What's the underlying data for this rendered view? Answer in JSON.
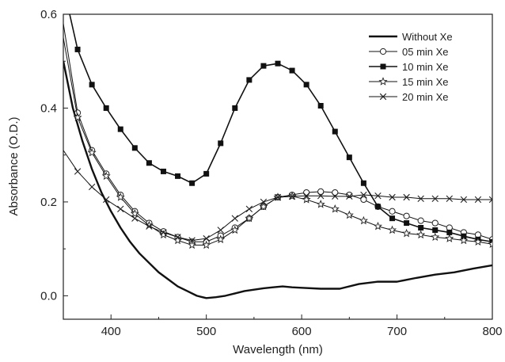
{
  "chart_data": {
    "type": "line",
    "xlabel": "Wavelength (nm)",
    "ylabel": "Absorbance (O.D.)",
    "xlim": [
      350,
      800
    ],
    "ylim": [
      -0.05,
      0.6
    ],
    "xticks": [
      "400",
      "500",
      "600",
      "700",
      "800"
    ],
    "yticks": [
      "0.0",
      "0.2",
      "0.4",
      "0.6"
    ],
    "xtick_values": [
      400,
      500,
      600,
      700,
      800
    ],
    "ytick_values": [
      0.0,
      0.2,
      0.4,
      0.6
    ],
    "grid": false,
    "legend_position": "top-right",
    "series": [
      {
        "name": "Without Xe",
        "marker": "none",
        "x": [
          350,
          360,
          370,
          380,
          390,
          400,
          410,
          420,
          430,
          440,
          450,
          460,
          470,
          480,
          490,
          500,
          510,
          520,
          530,
          540,
          550,
          560,
          570,
          580,
          590,
          600,
          620,
          640,
          660,
          680,
          700,
          720,
          740,
          760,
          780,
          800
        ],
        "y": [
          0.5,
          0.4,
          0.33,
          0.27,
          0.22,
          0.18,
          0.145,
          0.115,
          0.09,
          0.07,
          0.05,
          0.035,
          0.02,
          0.01,
          0.0,
          -0.005,
          -0.003,
          0.0,
          0.005,
          0.01,
          0.013,
          0.016,
          0.018,
          0.02,
          0.018,
          0.017,
          0.015,
          0.015,
          0.025,
          0.03,
          0.03,
          0.038,
          0.045,
          0.05,
          0.058,
          0.065
        ]
      },
      {
        "name": "05 min Xe",
        "marker": "circle-open",
        "x": [
          350,
          365,
          380,
          395,
          410,
          425,
          440,
          455,
          470,
          485,
          500,
          515,
          530,
          545,
          560,
          575,
          590,
          605,
          620,
          635,
          650,
          665,
          680,
          695,
          710,
          725,
          740,
          755,
          770,
          785,
          800
        ],
        "y": [
          0.58,
          0.39,
          0.31,
          0.26,
          0.215,
          0.18,
          0.155,
          0.137,
          0.125,
          0.115,
          0.115,
          0.128,
          0.145,
          0.165,
          0.19,
          0.21,
          0.215,
          0.22,
          0.222,
          0.22,
          0.215,
          0.205,
          0.19,
          0.18,
          0.17,
          0.16,
          0.155,
          0.145,
          0.135,
          0.13,
          0.12
        ]
      },
      {
        "name": "10 min Xe",
        "marker": "square-filled",
        "x": [
          350,
          365,
          380,
          395,
          410,
          425,
          440,
          455,
          470,
          485,
          500,
          515,
          530,
          545,
          560,
          575,
          590,
          605,
          620,
          635,
          650,
          665,
          680,
          695,
          710,
          725,
          740,
          755,
          770,
          785,
          800
        ],
        "y": [
          0.66,
          0.525,
          0.45,
          0.4,
          0.355,
          0.315,
          0.283,
          0.265,
          0.255,
          0.24,
          0.26,
          0.325,
          0.4,
          0.46,
          0.49,
          0.495,
          0.48,
          0.45,
          0.405,
          0.35,
          0.295,
          0.24,
          0.19,
          0.165,
          0.155,
          0.145,
          0.14,
          0.135,
          0.127,
          0.12,
          0.115
        ]
      },
      {
        "name": "15 min Xe",
        "marker": "star-open",
        "x": [
          350,
          365,
          380,
          395,
          410,
          425,
          440,
          455,
          470,
          485,
          500,
          515,
          530,
          545,
          560,
          575,
          590,
          605,
          620,
          635,
          650,
          665,
          680,
          695,
          710,
          725,
          740,
          755,
          770,
          785,
          800
        ],
        "y": [
          0.55,
          0.38,
          0.305,
          0.255,
          0.21,
          0.175,
          0.15,
          0.13,
          0.118,
          0.108,
          0.108,
          0.12,
          0.14,
          0.165,
          0.19,
          0.21,
          0.212,
          0.205,
          0.195,
          0.185,
          0.172,
          0.16,
          0.148,
          0.14,
          0.133,
          0.13,
          0.125,
          0.122,
          0.118,
          0.115,
          0.11
        ]
      },
      {
        "name": "20 min Xe",
        "marker": "x",
        "x": [
          350,
          365,
          380,
          395,
          410,
          425,
          440,
          455,
          470,
          485,
          500,
          515,
          530,
          545,
          560,
          575,
          590,
          605,
          620,
          635,
          650,
          665,
          680,
          695,
          710,
          725,
          740,
          755,
          770,
          785,
          800
        ],
        "y": [
          0.31,
          0.265,
          0.232,
          0.205,
          0.185,
          0.165,
          0.148,
          0.135,
          0.125,
          0.118,
          0.122,
          0.14,
          0.165,
          0.185,
          0.2,
          0.21,
          0.212,
          0.213,
          0.213,
          0.212,
          0.212,
          0.215,
          0.213,
          0.21,
          0.21,
          0.207,
          0.207,
          0.207,
          0.205,
          0.205,
          0.205
        ]
      }
    ]
  }
}
